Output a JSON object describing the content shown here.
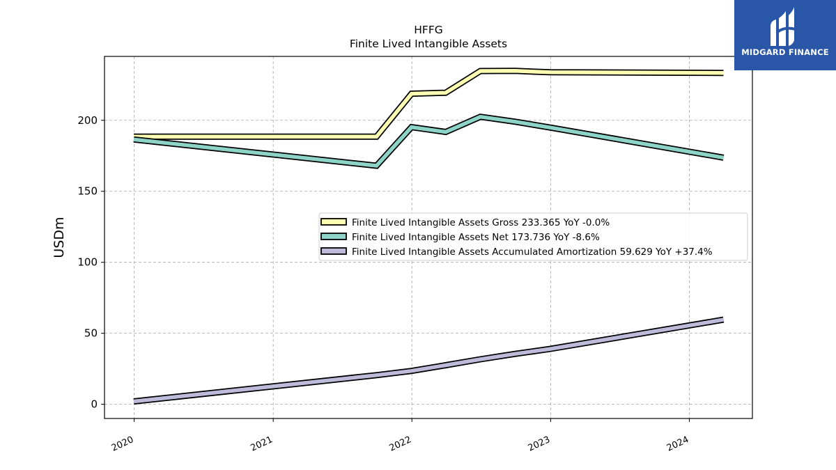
{
  "brand": {
    "name": "MIDGARD FINANCE",
    "background": "#2a56a8"
  },
  "chart_data": {
    "type": "line",
    "title": "HFFG",
    "subtitle": "Finite Lived Intangible Assets",
    "xlabel": "",
    "ylabel": "USDm",
    "x_ticks": [
      "2020",
      "2021",
      "2022",
      "2023",
      "2024"
    ],
    "y_ticks": [
      0,
      50,
      100,
      150,
      200
    ],
    "xlim": [
      "2019-10-15",
      "2024-06-15"
    ],
    "ylim": [
      -10,
      245
    ],
    "grid": true,
    "legend_position": "center-right",
    "x": [
      "2019-12-31",
      "2021-09-30",
      "2021-12-31",
      "2022-03-31",
      "2022-06-30",
      "2022-09-30",
      "2022-12-31",
      "2024-03-31"
    ],
    "series": [
      {
        "name": "Finite Lived Intangible Assets Gross",
        "legend_label": "Finite Lived Intangible Assets Gross  233.365 YoY -0.0%",
        "color": "#ffffb3",
        "values": [
          188.5,
          188.5,
          218.7,
          219.4,
          234.7,
          234.8,
          233.8,
          233.4
        ]
      },
      {
        "name": "Finite Lived Intangible Assets Net",
        "legend_label": "Finite Lived Intangible Assets Net  173.736 YoY -8.6%",
        "color": "#8dd3c7",
        "values": [
          186.5,
          168.0,
          195.2,
          191.8,
          202.5,
          199.0,
          194.9,
          173.7
        ]
      },
      {
        "name": "Finite Lived Intangible Assets Accumulated Amortization",
        "legend_label": "Finite Lived Intangible Assets Accumulated Amortization  59.629 YoY +37.4%",
        "color": "#bebada",
        "values": [
          2.0,
          20.5,
          23.5,
          27.5,
          31.7,
          35.5,
          39.0,
          59.6
        ]
      }
    ]
  }
}
